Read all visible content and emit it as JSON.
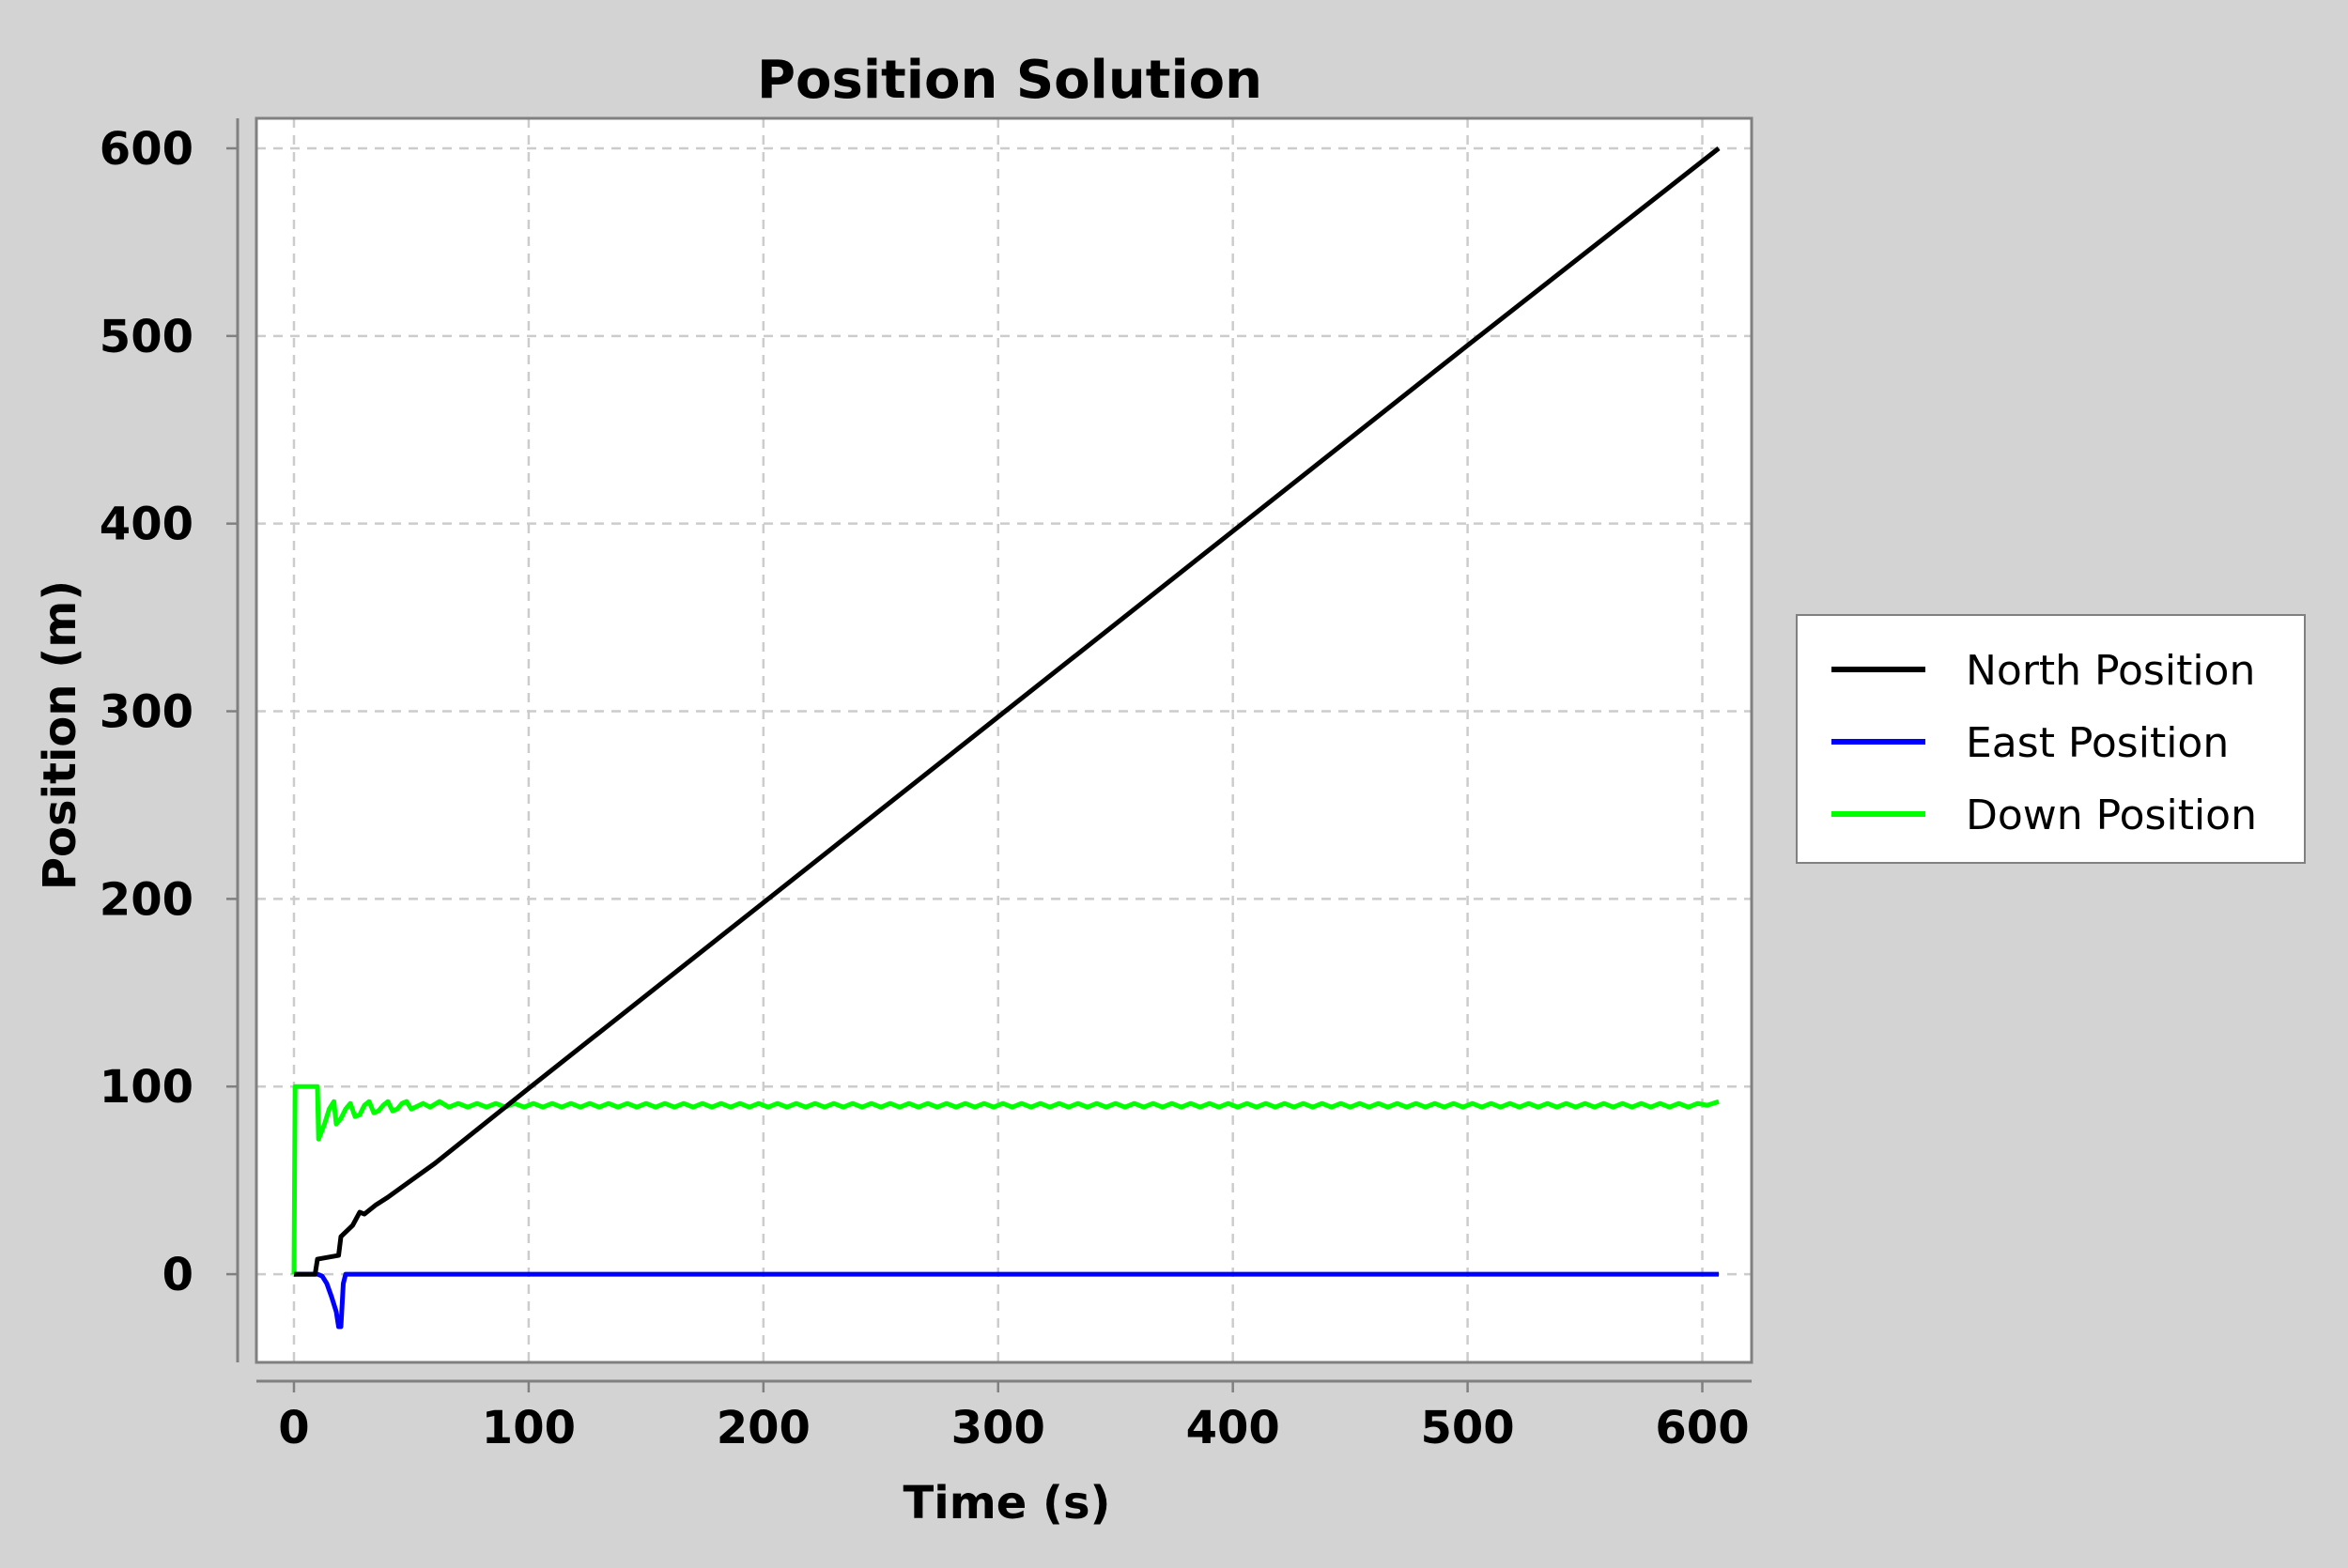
{
  "chart_data": {
    "type": "line",
    "title": "Position Solution",
    "xlabel": "Time (s)",
    "ylabel": "Position (m)",
    "xlim": [
      -16,
      621
    ],
    "ylim": [
      -47,
      616
    ],
    "xticks": [
      0,
      100,
      200,
      300,
      400,
      500,
      600
    ],
    "yticks": [
      0,
      100,
      200,
      300,
      400,
      500,
      600
    ],
    "grid": true,
    "legend_position": "right",
    "series": [
      {
        "name": "North Position",
        "color": "#000000",
        "points": [
          [
            0,
            0
          ],
          [
            9,
            0
          ],
          [
            10,
            8
          ],
          [
            19,
            10
          ],
          [
            20,
            20
          ],
          [
            25,
            26
          ],
          [
            28,
            33
          ],
          [
            30,
            32
          ],
          [
            35,
            37
          ],
          [
            40,
            41
          ],
          [
            50,
            50
          ],
          [
            60,
            59
          ],
          [
            80,
            79
          ],
          [
            100,
            99
          ],
          [
            200,
            198
          ],
          [
            300,
            297
          ],
          [
            400,
            396
          ],
          [
            500,
            495
          ],
          [
            607,
            600
          ]
        ]
      },
      {
        "name": "East Position",
        "color": "#0000ff",
        "points": [
          [
            0,
            0
          ],
          [
            10,
            0
          ],
          [
            12,
            -1
          ],
          [
            14,
            -5
          ],
          [
            16,
            -12
          ],
          [
            18,
            -20
          ],
          [
            19,
            -28
          ],
          [
            20,
            -28
          ],
          [
            21,
            -5
          ],
          [
            22,
            0
          ],
          [
            100,
            0
          ],
          [
            300,
            0
          ],
          [
            500,
            0
          ],
          [
            607,
            0
          ]
        ]
      },
      {
        "name": "Down Position",
        "color": "#00ff00",
        "points": [
          [
            0,
            0
          ],
          [
            0.5,
            100
          ],
          [
            10,
            100
          ],
          [
            10.5,
            72
          ],
          [
            13,
            80
          ],
          [
            15,
            88
          ],
          [
            17,
            92
          ],
          [
            18,
            80
          ],
          [
            20,
            83
          ],
          [
            22,
            88
          ],
          [
            24,
            91
          ],
          [
            26,
            84
          ],
          [
            28,
            85
          ],
          [
            30,
            90
          ],
          [
            32,
            92
          ],
          [
            34,
            86
          ],
          [
            36,
            87
          ],
          [
            38,
            90
          ],
          [
            40,
            92
          ],
          [
            42,
            87
          ],
          [
            44,
            88
          ],
          [
            46,
            91
          ],
          [
            48,
            92
          ],
          [
            50,
            88
          ],
          [
            55,
            91
          ],
          [
            58,
            89
          ],
          [
            62,
            92
          ],
          [
            66,
            89
          ],
          [
            70,
            91
          ],
          [
            74,
            89
          ],
          [
            78,
            91
          ],
          [
            82,
            89
          ],
          [
            86,
            91
          ],
          [
            90,
            89
          ],
          [
            94,
            91
          ],
          [
            98,
            89
          ],
          [
            102,
            91
          ],
          [
            106,
            89
          ],
          [
            110,
            91
          ],
          [
            114,
            89
          ],
          [
            118,
            91
          ],
          [
            122,
            89
          ],
          [
            126,
            91
          ],
          [
            130,
            89
          ],
          [
            134,
            91
          ],
          [
            138,
            89
          ],
          [
            142,
            91
          ],
          [
            146,
            89
          ],
          [
            150,
            91
          ],
          [
            154,
            89
          ],
          [
            158,
            91
          ],
          [
            162,
            89
          ],
          [
            166,
            91
          ],
          [
            170,
            89
          ],
          [
            174,
            91
          ],
          [
            178,
            89
          ],
          [
            182,
            91
          ],
          [
            186,
            89
          ],
          [
            190,
            91
          ],
          [
            194,
            89
          ],
          [
            198,
            91
          ],
          [
            202,
            89
          ],
          [
            206,
            91
          ],
          [
            210,
            89
          ],
          [
            214,
            91
          ],
          [
            218,
            89
          ],
          [
            222,
            91
          ],
          [
            226,
            89
          ],
          [
            230,
            91
          ],
          [
            234,
            89
          ],
          [
            238,
            91
          ],
          [
            242,
            89
          ],
          [
            246,
            91
          ],
          [
            250,
            89
          ],
          [
            254,
            91
          ],
          [
            258,
            89
          ],
          [
            262,
            91
          ],
          [
            266,
            89
          ],
          [
            270,
            91
          ],
          [
            274,
            89
          ],
          [
            278,
            91
          ],
          [
            282,
            89
          ],
          [
            286,
            91
          ],
          [
            290,
            89
          ],
          [
            294,
            91
          ],
          [
            298,
            89
          ],
          [
            302,
            91
          ],
          [
            306,
            89
          ],
          [
            310,
            91
          ],
          [
            314,
            89
          ],
          [
            318,
            91
          ],
          [
            322,
            89
          ],
          [
            326,
            91
          ],
          [
            330,
            89
          ],
          [
            334,
            91
          ],
          [
            338,
            89
          ],
          [
            342,
            91
          ],
          [
            346,
            89
          ],
          [
            350,
            91
          ],
          [
            354,
            89
          ],
          [
            358,
            91
          ],
          [
            362,
            89
          ],
          [
            366,
            91
          ],
          [
            370,
            89
          ],
          [
            374,
            91
          ],
          [
            378,
            89
          ],
          [
            382,
            91
          ],
          [
            386,
            89
          ],
          [
            390,
            91
          ],
          [
            394,
            89
          ],
          [
            398,
            91
          ],
          [
            402,
            89
          ],
          [
            406,
            91
          ],
          [
            410,
            89
          ],
          [
            414,
            91
          ],
          [
            418,
            89
          ],
          [
            422,
            91
          ],
          [
            426,
            89
          ],
          [
            430,
            91
          ],
          [
            434,
            89
          ],
          [
            438,
            91
          ],
          [
            442,
            89
          ],
          [
            446,
            91
          ],
          [
            450,
            89
          ],
          [
            454,
            91
          ],
          [
            458,
            89
          ],
          [
            462,
            91
          ],
          [
            466,
            89
          ],
          [
            470,
            91
          ],
          [
            474,
            89
          ],
          [
            478,
            91
          ],
          [
            482,
            89
          ],
          [
            486,
            91
          ],
          [
            490,
            89
          ],
          [
            494,
            91
          ],
          [
            498,
            89
          ],
          [
            502,
            91
          ],
          [
            506,
            89
          ],
          [
            510,
            91
          ],
          [
            514,
            89
          ],
          [
            518,
            91
          ],
          [
            522,
            89
          ],
          [
            526,
            91
          ],
          [
            530,
            89
          ],
          [
            534,
            91
          ],
          [
            538,
            89
          ],
          [
            542,
            91
          ],
          [
            546,
            89
          ],
          [
            550,
            91
          ],
          [
            554,
            89
          ],
          [
            558,
            91
          ],
          [
            562,
            89
          ],
          [
            566,
            91
          ],
          [
            570,
            89
          ],
          [
            574,
            91
          ],
          [
            578,
            89
          ],
          [
            582,
            91
          ],
          [
            586,
            89
          ],
          [
            590,
            91
          ],
          [
            594,
            89
          ],
          [
            598,
            91
          ],
          [
            602,
            90
          ],
          [
            607,
            92
          ]
        ]
      }
    ]
  }
}
